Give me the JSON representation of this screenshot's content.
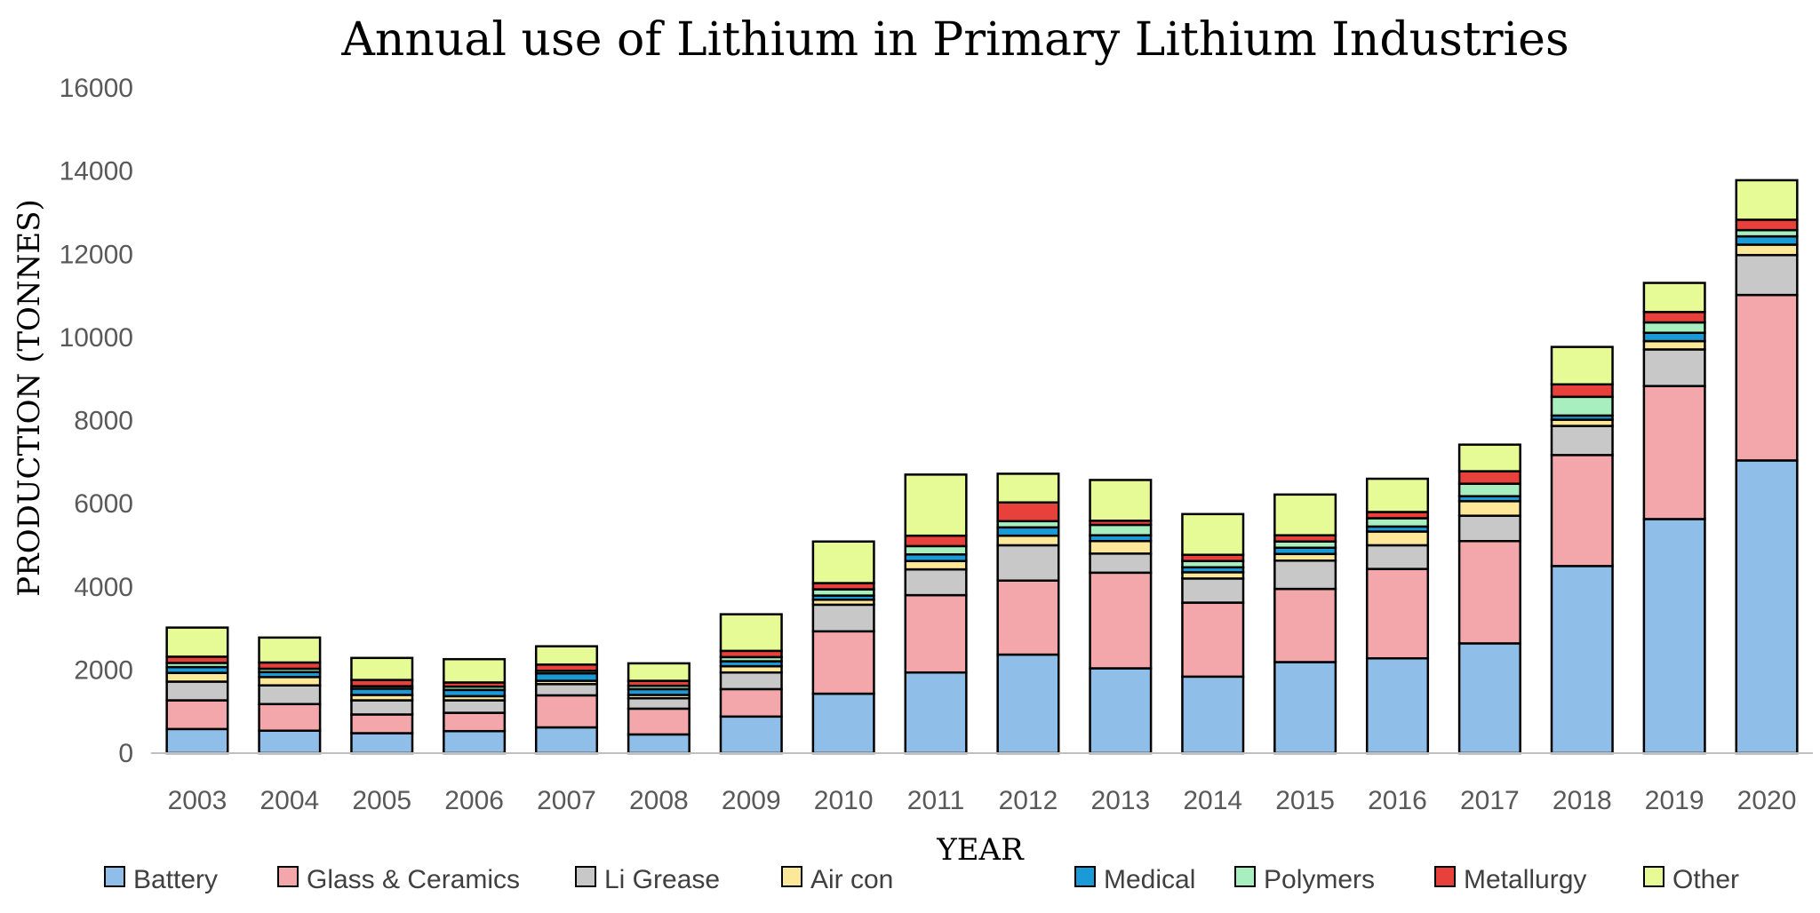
{
  "chart_data": {
    "type": "bar",
    "stacked": true,
    "title": "Annual use of Lithium in Primary Lithium Industries",
    "xlabel": "YEAR",
    "ylabel": "PRODUCTION (TONNES)",
    "ylim": [
      0,
      16000
    ],
    "yticks": [
      "0",
      "2000",
      "4000",
      "6000",
      "8000",
      "10000",
      "12000",
      "14000",
      "16000"
    ],
    "grid": false,
    "legend_position": "bottom",
    "categories": [
      "2003",
      "2004",
      "2005",
      "2006",
      "2007",
      "2008",
      "2009",
      "2010",
      "2011",
      "2012",
      "2013",
      "2014",
      "2015",
      "2016",
      "2017",
      "2018",
      "2019",
      "2020"
    ],
    "series": [
      {
        "name": "Battery",
        "color": "#8fbfe8",
        "values": [
          580,
          540,
          480,
          530,
          620,
          450,
          880,
          1430,
          1940,
          2370,
          2040,
          1840,
          2190,
          2280,
          2640,
          4500,
          5630,
          7040
        ]
      },
      {
        "name": "Glass & Ceramics",
        "color": "#f4a7aa",
        "values": [
          690,
          640,
          450,
          440,
          770,
          620,
          660,
          1500,
          1860,
          1780,
          2300,
          1780,
          1760,
          2150,
          2460,
          2670,
          3200,
          3980
        ]
      },
      {
        "name": "Li Grease",
        "color": "#c8c8c8",
        "values": [
          450,
          450,
          340,
          300,
          270,
          250,
          400,
          640,
          620,
          850,
          460,
          580,
          680,
          570,
          610,
          700,
          880,
          960
        ]
      },
      {
        "name": "Air con",
        "color": "#fde89a",
        "values": [
          210,
          200,
          130,
          100,
          80,
          80,
          150,
          120,
          200,
          230,
          300,
          150,
          160,
          330,
          350,
          150,
          200,
          250
        ]
      },
      {
        "name": "Medical",
        "color": "#1a9ad6",
        "values": [
          140,
          120,
          150,
          150,
          180,
          140,
          120,
          100,
          160,
          200,
          140,
          120,
          150,
          120,
          120,
          100,
          200,
          200
        ]
      },
      {
        "name": "Polymers",
        "color": "#a8efc0",
        "values": [
          100,
          80,
          60,
          80,
          60,
          80,
          100,
          150,
          200,
          150,
          250,
          150,
          150,
          200,
          300,
          450,
          250,
          150
        ]
      },
      {
        "name": "Metallurgy",
        "color": "#e8413c",
        "values": [
          150,
          150,
          150,
          100,
          150,
          120,
          150,
          150,
          250,
          450,
          100,
          150,
          150,
          150,
          300,
          300,
          250,
          250
        ]
      },
      {
        "name": "Other",
        "color": "#e6fa96",
        "values": [
          700,
          600,
          530,
          560,
          440,
          420,
          880,
          1000,
          1470,
          690,
          980,
          980,
          980,
          800,
          640,
          900,
          700,
          950
        ]
      }
    ]
  }
}
